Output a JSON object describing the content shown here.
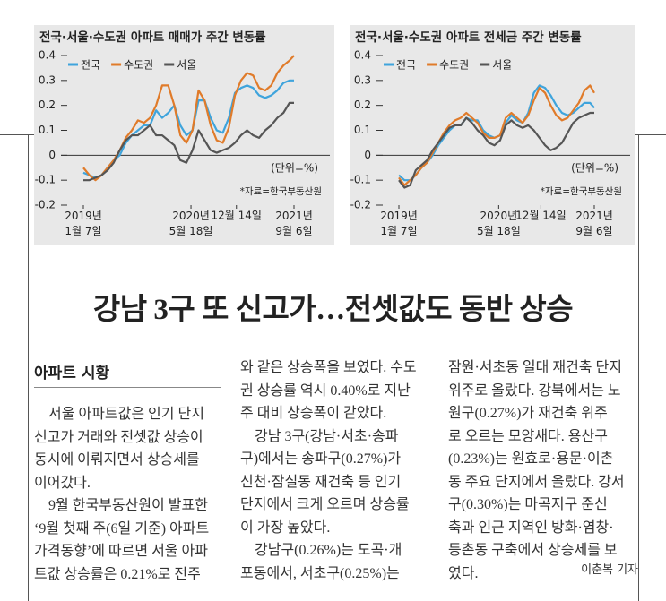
{
  "chart_data": [
    {
      "type": "line",
      "title": "전국·서울·수도권 아파트 매매가 주간 변동률",
      "unit_note": "(단위=%)",
      "source": "*자료=한국부동산원",
      "x": [
        "2019-01-07",
        "2019-02-04",
        "2019-03-04",
        "2019-04-01",
        "2019-04-29",
        "2019-05-27",
        "2019-06-24",
        "2019-07-22",
        "2019-08-19",
        "2019-09-16",
        "2019-10-14",
        "2019-11-11",
        "2019-12-09",
        "2020-01-06",
        "2020-02-03",
        "2020-03-02",
        "2020-03-30",
        "2020-04-27",
        "2020-05-25",
        "2020-06-22",
        "2020-07-20",
        "2020-08-17",
        "2020-09-14",
        "2020-10-12",
        "2020-11-09",
        "2020-12-07",
        "2021-01-04",
        "2021-02-01",
        "2021-03-01",
        "2021-03-29",
        "2021-04-26",
        "2021-05-24",
        "2021-06-21",
        "2021-07-19",
        "2021-08-16",
        "2021-09-06"
      ],
      "xlim": [
        "2019-01-07",
        "2021-09-06"
      ],
      "xticks": [
        {
          "value": "2019-01-07",
          "label": "2019년\n1월 7일"
        },
        {
          "value": "2020-05-18",
          "label": "2020년\n5월 18일"
        },
        {
          "value": "2020-12-14",
          "label": "12월 14일"
        },
        {
          "value": "2021-09-06",
          "label": "2021년\n9월 6일"
        }
      ],
      "ylim": [
        -0.2,
        0.4
      ],
      "yticks": [
        -0.2,
        -0.1,
        0,
        0.1,
        0.2,
        0.3,
        0.4
      ],
      "grid": false,
      "series": [
        {
          "name": "전국",
          "color": "#3fa4dc",
          "values": [
            -0.07,
            -0.08,
            -0.09,
            -0.08,
            -0.05,
            -0.02,
            0.0,
            0.05,
            0.08,
            0.1,
            0.12,
            0.12,
            0.18,
            0.15,
            0.17,
            0.2,
            0.12,
            0.08,
            0.1,
            0.22,
            0.22,
            0.15,
            0.1,
            0.09,
            0.15,
            0.25,
            0.27,
            0.28,
            0.27,
            0.24,
            0.23,
            0.24,
            0.26,
            0.29,
            0.3,
            0.3
          ]
        },
        {
          "name": "수도권",
          "color": "#e07b2a",
          "values": [
            -0.05,
            -0.08,
            -0.1,
            -0.08,
            -0.05,
            -0.02,
            0.02,
            0.07,
            0.1,
            0.14,
            0.13,
            0.15,
            0.2,
            0.28,
            0.28,
            0.2,
            0.08,
            0.05,
            0.1,
            0.26,
            0.22,
            0.12,
            0.06,
            0.05,
            0.11,
            0.24,
            0.3,
            0.33,
            0.32,
            0.27,
            0.26,
            0.28,
            0.33,
            0.36,
            0.38,
            0.4
          ]
        },
        {
          "name": "서울",
          "color": "#555555",
          "values": [
            -0.1,
            -0.1,
            -0.09,
            -0.08,
            -0.06,
            -0.03,
            0.02,
            0.06,
            0.08,
            0.08,
            0.1,
            0.12,
            0.08,
            0.08,
            0.06,
            0.04,
            -0.02,
            -0.03,
            0.02,
            0.1,
            0.06,
            0.02,
            0.01,
            0.02,
            0.03,
            0.05,
            0.08,
            0.1,
            0.08,
            0.07,
            0.1,
            0.12,
            0.15,
            0.17,
            0.21,
            0.21
          ]
        }
      ]
    },
    {
      "type": "line",
      "title": "전국·서울·수도권 아파트 전세금 주간 변동률",
      "unit_note": "(단위=%)",
      "source": "*자료=한국부동산원",
      "x": [
        "2019-01-07",
        "2019-02-04",
        "2019-03-04",
        "2019-04-01",
        "2019-04-29",
        "2019-05-27",
        "2019-06-24",
        "2019-07-22",
        "2019-08-19",
        "2019-09-16",
        "2019-10-14",
        "2019-11-11",
        "2019-12-09",
        "2020-01-06",
        "2020-02-03",
        "2020-03-02",
        "2020-03-30",
        "2020-04-27",
        "2020-05-25",
        "2020-06-22",
        "2020-07-20",
        "2020-08-17",
        "2020-09-14",
        "2020-10-12",
        "2020-11-09",
        "2020-12-07",
        "2021-01-04",
        "2021-02-01",
        "2021-03-01",
        "2021-03-29",
        "2021-04-26",
        "2021-05-24",
        "2021-06-21",
        "2021-07-19",
        "2021-08-16",
        "2021-09-06"
      ],
      "xlim": [
        "2019-01-07",
        "2021-09-06"
      ],
      "xticks": [
        {
          "value": "2019-01-07",
          "label": "2019년\n1월 7일"
        },
        {
          "value": "2020-05-18",
          "label": "2020년\n5월 18일"
        },
        {
          "value": "2020-12-14",
          "label": "12월 14일"
        },
        {
          "value": "2021-09-06",
          "label": "2021년\n9월 6일"
        }
      ],
      "ylim": [
        -0.2,
        0.4
      ],
      "yticks": [
        -0.2,
        -0.1,
        0,
        0.1,
        0.2,
        0.3,
        0.4
      ],
      "grid": false,
      "series": [
        {
          "name": "전국",
          "color": "#3fa4dc",
          "values": [
            -0.08,
            -0.1,
            -0.1,
            -0.08,
            -0.05,
            -0.03,
            0.0,
            0.04,
            0.07,
            0.1,
            0.12,
            0.12,
            0.15,
            0.14,
            0.14,
            0.1,
            0.08,
            0.07,
            0.08,
            0.13,
            0.16,
            0.14,
            0.13,
            0.17,
            0.25,
            0.28,
            0.27,
            0.24,
            0.2,
            0.17,
            0.16,
            0.17,
            0.19,
            0.21,
            0.21,
            0.19
          ]
        },
        {
          "name": "수도권",
          "color": "#e07b2a",
          "values": [
            -0.09,
            -0.12,
            -0.1,
            -0.08,
            -0.05,
            -0.03,
            0.01,
            0.05,
            0.09,
            0.12,
            0.14,
            0.15,
            0.17,
            0.15,
            0.13,
            0.09,
            0.07,
            0.07,
            0.08,
            0.15,
            0.17,
            0.15,
            0.13,
            0.16,
            0.22,
            0.27,
            0.25,
            0.2,
            0.16,
            0.14,
            0.15,
            0.18,
            0.21,
            0.26,
            0.28,
            0.25
          ]
        },
        {
          "name": "서울",
          "color": "#555555",
          "values": [
            -0.1,
            -0.13,
            -0.12,
            -0.06,
            -0.04,
            -0.02,
            0.02,
            0.05,
            0.08,
            0.11,
            0.12,
            0.12,
            0.15,
            0.13,
            0.1,
            0.08,
            0.05,
            0.04,
            0.06,
            0.12,
            0.14,
            0.12,
            0.11,
            0.12,
            0.1,
            0.07,
            0.04,
            0.02,
            0.03,
            0.05,
            0.09,
            0.13,
            0.15,
            0.16,
            0.17,
            0.17
          ]
        }
      ]
    }
  ],
  "article": {
    "headline": "강남 3구 또 신고가…전셋값도 동반 상승",
    "section": "아파트 시황",
    "columns": [
      {
        "lines": [
          "서울 아파트값은 인기 단지",
          "신고가 거래와 전셋값 상승이",
          "동시에 이뤄지면서 상승세를",
          "이어갔다.",
          "9월 한국부동산원이 발표한",
          "‘9월 첫째 주(6일 기준) 아파트",
          "가격동향’에 따르면 서울 아파",
          "트값 상승률은 0.21%로 전주"
        ]
      },
      {
        "lines": [
          "와 같은 상승폭을 보였다. 수도",
          "권 상승률 역시 0.40%로 지난",
          "주 대비 상승폭이 같았다.",
          "강남 3구(강남·서초·송파",
          "구)에서는 송파구(0.27%)가",
          "신천·잠실동 재건축 등 인기",
          "단지에서 크게 오르며 상승률",
          "이 가장 높았다.",
          "강남구(0.26%)는 도곡·개",
          "포동에서, 서초구(0.25%)는"
        ]
      },
      {
        "lines": [
          "잠원·서초동 일대 재건축 단지",
          "위주로 올랐다. 강북에서는 노",
          "원구(0.27%)가 재건축 위주",
          "로 오르는 모양새다. 용산구",
          "(0.23%)는 원효로·용문·이촌",
          "동 주요 단지에서 올랐다. 강서",
          "구(0.30%)는 마곡지구 준신",
          "축과 인근 지역인 방화·염창·",
          "등촌동 구축에서 상승세를 보",
          "였다."
        ]
      }
    ],
    "byline": "이춘복 기자"
  }
}
